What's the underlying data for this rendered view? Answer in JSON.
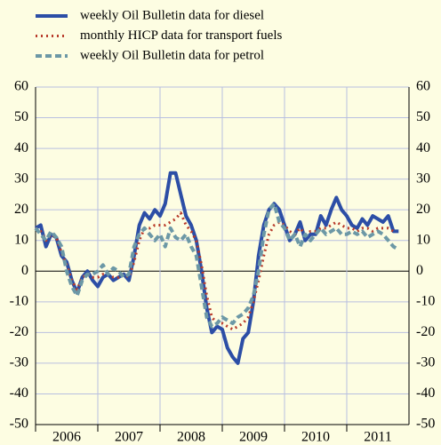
{
  "chart_data": {
    "type": "line",
    "x": [
      2006,
      2006.083,
      2006.167,
      2006.25,
      2006.333,
      2006.417,
      2006.5,
      2006.583,
      2006.667,
      2006.75,
      2006.833,
      2006.917,
      2007,
      2007.083,
      2007.167,
      2007.25,
      2007.333,
      2007.417,
      2007.5,
      2007.583,
      2007.667,
      2007.75,
      2007.833,
      2007.917,
      2008,
      2008.083,
      2008.167,
      2008.25,
      2008.333,
      2008.417,
      2008.5,
      2008.583,
      2008.667,
      2008.75,
      2008.833,
      2008.917,
      2009,
      2009.083,
      2009.167,
      2009.25,
      2009.333,
      2009.417,
      2009.5,
      2009.583,
      2009.667,
      2009.75,
      2009.833,
      2009.917,
      2010,
      2010.083,
      2010.167,
      2010.25,
      2010.333,
      2010.417,
      2010.5,
      2010.583,
      2010.667,
      2010.75,
      2010.833,
      2010.917,
      2011,
      2011.083,
      2011.167,
      2011.25,
      2011.333,
      2011.417,
      2011.5,
      2011.583,
      2011.667,
      2011.75,
      2011.833
    ],
    "series": [
      {
        "name": "weekly Oil Bulletin data for diesel",
        "color": "#2c4ea6",
        "style": "solid",
        "values": [
          14,
          15,
          8,
          12,
          11,
          5,
          3,
          -3,
          -7,
          -2,
          0,
          -3,
          -5,
          -2,
          -1,
          -3,
          -2,
          -1,
          -3,
          5,
          15,
          19,
          17,
          20,
          18,
          22,
          32,
          32,
          25,
          18,
          15,
          10,
          0,
          -12,
          -20,
          -18,
          -19,
          -25,
          -28,
          -30,
          -22,
          -20,
          -10,
          5,
          15,
          20,
          22,
          20,
          15,
          10,
          12,
          16,
          10,
          12,
          12,
          18,
          15,
          20,
          24,
          20,
          18,
          15,
          14,
          17,
          15,
          18,
          17,
          16,
          18,
          13,
          13
        ]
      },
      {
        "name": "monthly HICP data for transport fuels",
        "color": "#b83a2a",
        "style": "dotted",
        "values": [
          14,
          13,
          10,
          12,
          11,
          6,
          2,
          -3,
          -6,
          -2,
          -1,
          -2,
          -2,
          -1,
          -1,
          -2,
          -2,
          -1,
          -2,
          3,
          10,
          14,
          14,
          15,
          15,
          15,
          16,
          17,
          19,
          15,
          13,
          10,
          2,
          -8,
          -15,
          -17,
          -17,
          -18,
          -19,
          -18,
          -17,
          -15,
          -10,
          -3,
          5,
          12,
          15,
          16,
          15,
          13,
          12,
          14,
          12,
          13,
          13,
          14,
          14,
          15,
          16,
          15,
          14,
          14,
          13,
          14,
          14,
          13,
          14,
          14,
          14,
          13,
          null
        ]
      },
      {
        "name": "weekly Oil Bulletin data for petrol",
        "color": "#6c98a6",
        "style": "dashed",
        "values": [
          14,
          12,
          10,
          13,
          11,
          8,
          0,
          -5,
          -8,
          -3,
          -1,
          -1,
          0,
          2,
          -1,
          1,
          0,
          -2,
          -1,
          8,
          12,
          14,
          12,
          10,
          12,
          8,
          14,
          11,
          10,
          12,
          8,
          5,
          -5,
          -15,
          -18,
          -17,
          -15,
          -16,
          -17,
          -15,
          -14,
          -12,
          -8,
          0,
          12,
          20,
          22,
          16,
          14,
          10,
          12,
          8,
          12,
          10,
          12,
          14,
          12,
          13,
          14,
          12,
          12,
          13,
          12,
          13,
          11,
          12,
          13,
          12,
          10,
          8,
          7
        ]
      }
    ],
    "xlim": [
      2006,
      2012
    ],
    "xticks": [
      2006,
      2007,
      2008,
      2009,
      2010,
      2011
    ],
    "ylim": [
      -50,
      60
    ],
    "yticks": [
      -50,
      -40,
      -30,
      -20,
      -10,
      0,
      10,
      20,
      30,
      40,
      50,
      60
    ],
    "grid": true
  }
}
